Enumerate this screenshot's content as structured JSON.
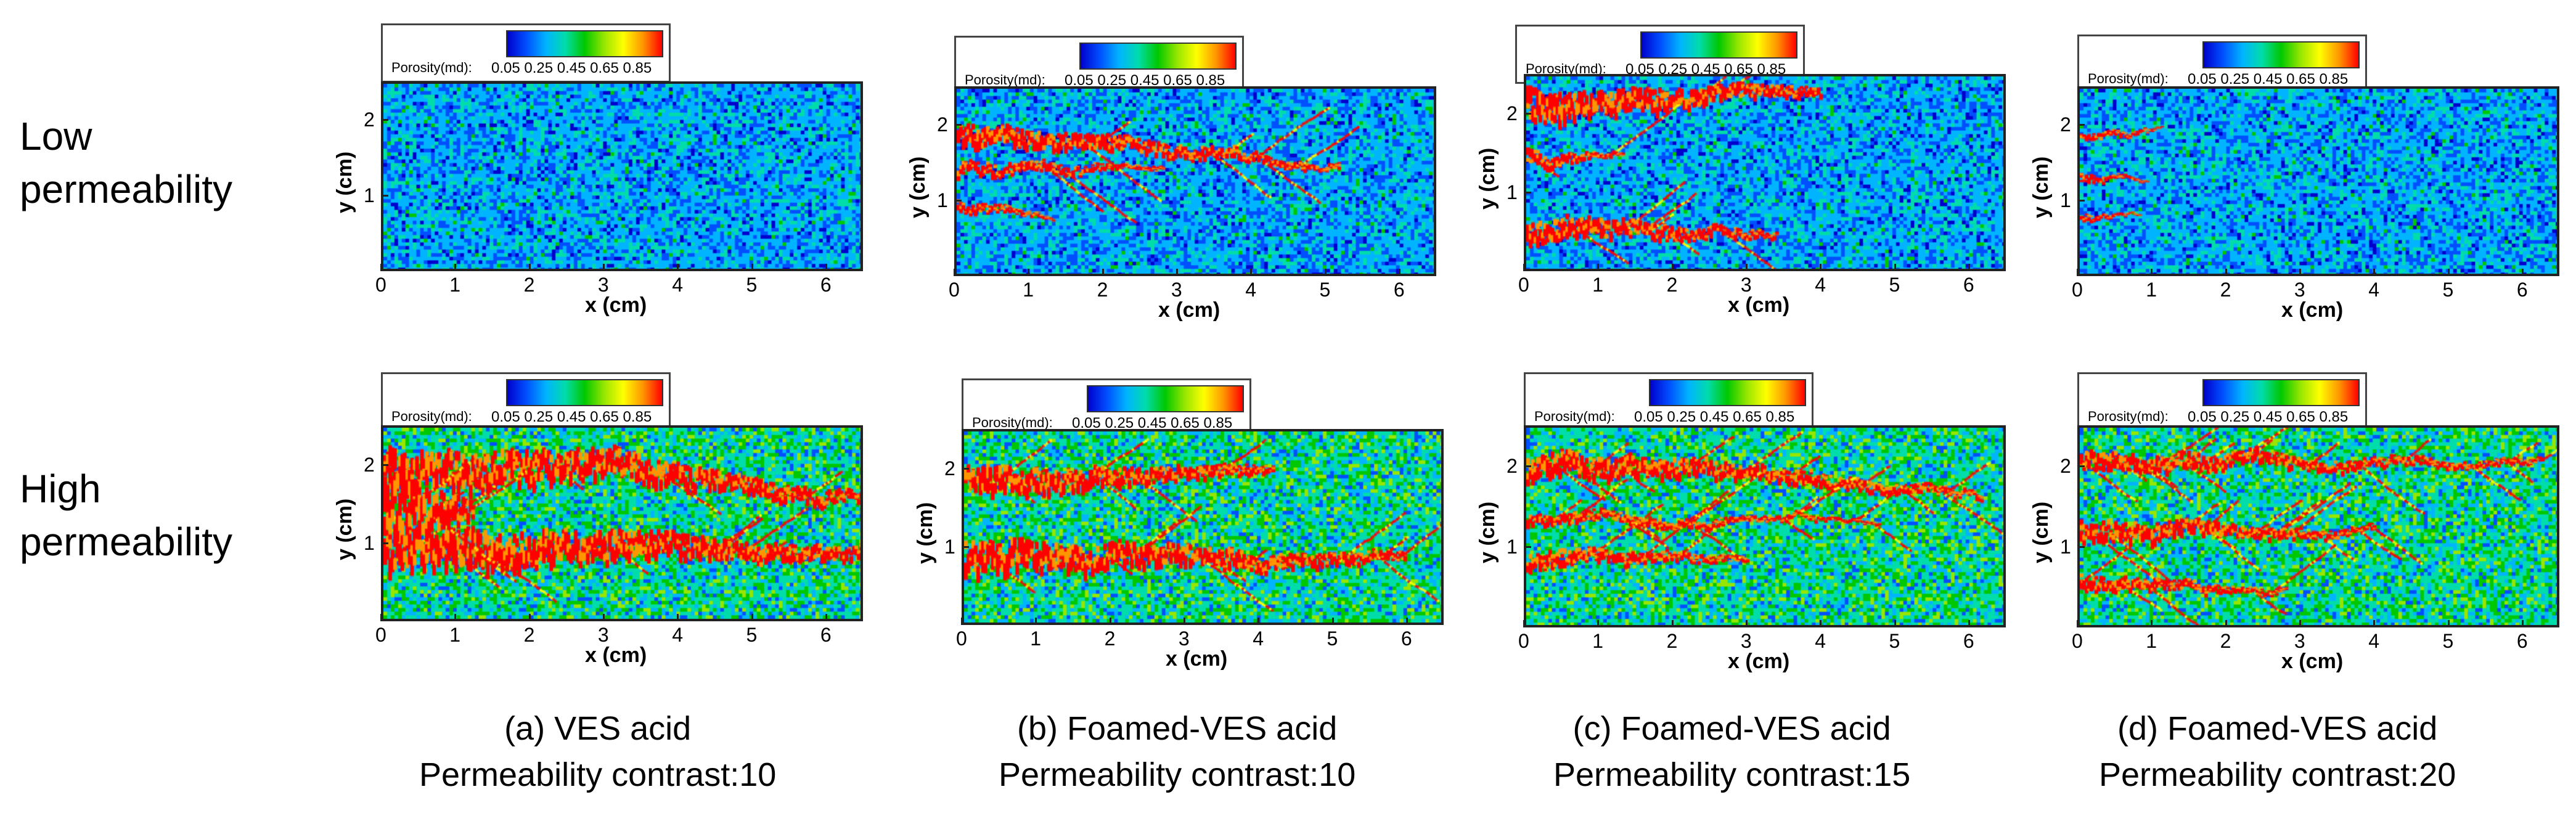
{
  "row_labels": {
    "low": [
      "Low",
      "permeability"
    ],
    "high": [
      "High",
      "permeability"
    ]
  },
  "axes": {
    "x_title": "x (cm)",
    "y_title": "y (cm)",
    "x_ticks": [
      "0",
      "1",
      "2",
      "3",
      "4",
      "5",
      "6"
    ],
    "y_ticks": [
      "1",
      "2"
    ]
  },
  "legend": {
    "title": "Porosity(md):",
    "ticks": "0.05 0.25 0.45 0.65 0.85"
  },
  "captions": [
    {
      "line1": "(a)  VES acid",
      "line2": "Permeability contrast:10"
    },
    {
      "line1": "(b)  Foamed-VES acid",
      "line2": "Permeability contrast:10"
    },
    {
      "line1": "(c)  Foamed-VES acid",
      "line2": "Permeability contrast:15"
    },
    {
      "line1": "(d)  Foamed-VES acid",
      "line2": "Permeability contrast:20"
    }
  ],
  "colormap": [
    "#0000cc",
    "#0050ff",
    "#00b4ff",
    "#00dcaa",
    "#00c800",
    "#96e600",
    "#ffff00",
    "#ff9600",
    "#ff0000"
  ],
  "panels": [
    {
      "id": "low-a",
      "base": "low",
      "wormholes": []
    },
    {
      "id": "low-b",
      "base": "low",
      "wormholes": [
        {
          "y": 1.9,
          "len": 5.2,
          "w": 0.16
        },
        {
          "y": 1.35,
          "len": 2.8,
          "w": 0.1
        },
        {
          "y": 0.9,
          "len": 1.3,
          "w": 0.08
        }
      ]
    },
    {
      "id": "low-c",
      "base": "low",
      "wormholes": [
        {
          "y": 2.1,
          "len": 4.0,
          "w": 0.22
        },
        {
          "y": 1.45,
          "len": 1.3,
          "w": 0.1
        },
        {
          "y": 0.45,
          "len": 3.4,
          "w": 0.16
        }
      ]
    },
    {
      "id": "low-d",
      "base": "low",
      "wormholes": [
        {
          "y": 1.85,
          "len": 1.1,
          "w": 0.06
        },
        {
          "y": 1.3,
          "len": 0.9,
          "w": 0.06
        },
        {
          "y": 0.75,
          "len": 0.8,
          "w": 0.05
        }
      ]
    },
    {
      "id": "high-a",
      "base": "high",
      "wormholes": [
        {
          "y": 1.95,
          "len": 6.5,
          "w": 0.28
        },
        {
          "y": 0.85,
          "len": 6.5,
          "w": 0.3
        },
        {
          "y": 1.4,
          "len": 1.2,
          "w": 0.45
        }
      ]
    },
    {
      "id": "high-b",
      "base": "high",
      "wormholes": [
        {
          "y": 1.85,
          "len": 4.2,
          "w": 0.2
        },
        {
          "y": 0.8,
          "len": 6.0,
          "w": 0.22
        }
      ]
    },
    {
      "id": "high-c",
      "base": "high",
      "wormholes": [
        {
          "y": 1.95,
          "len": 6.2,
          "w": 0.16
        },
        {
          "y": 0.75,
          "len": 3.0,
          "w": 0.12
        },
        {
          "y": 1.3,
          "len": 4.8,
          "w": 0.08
        }
      ]
    },
    {
      "id": "high-d",
      "base": "high",
      "wormholes": [
        {
          "y": 2.05,
          "len": 6.3,
          "w": 0.12
        },
        {
          "y": 1.2,
          "len": 4.0,
          "w": 0.14
        },
        {
          "y": 0.55,
          "len": 2.8,
          "w": 0.1
        }
      ]
    }
  ]
}
